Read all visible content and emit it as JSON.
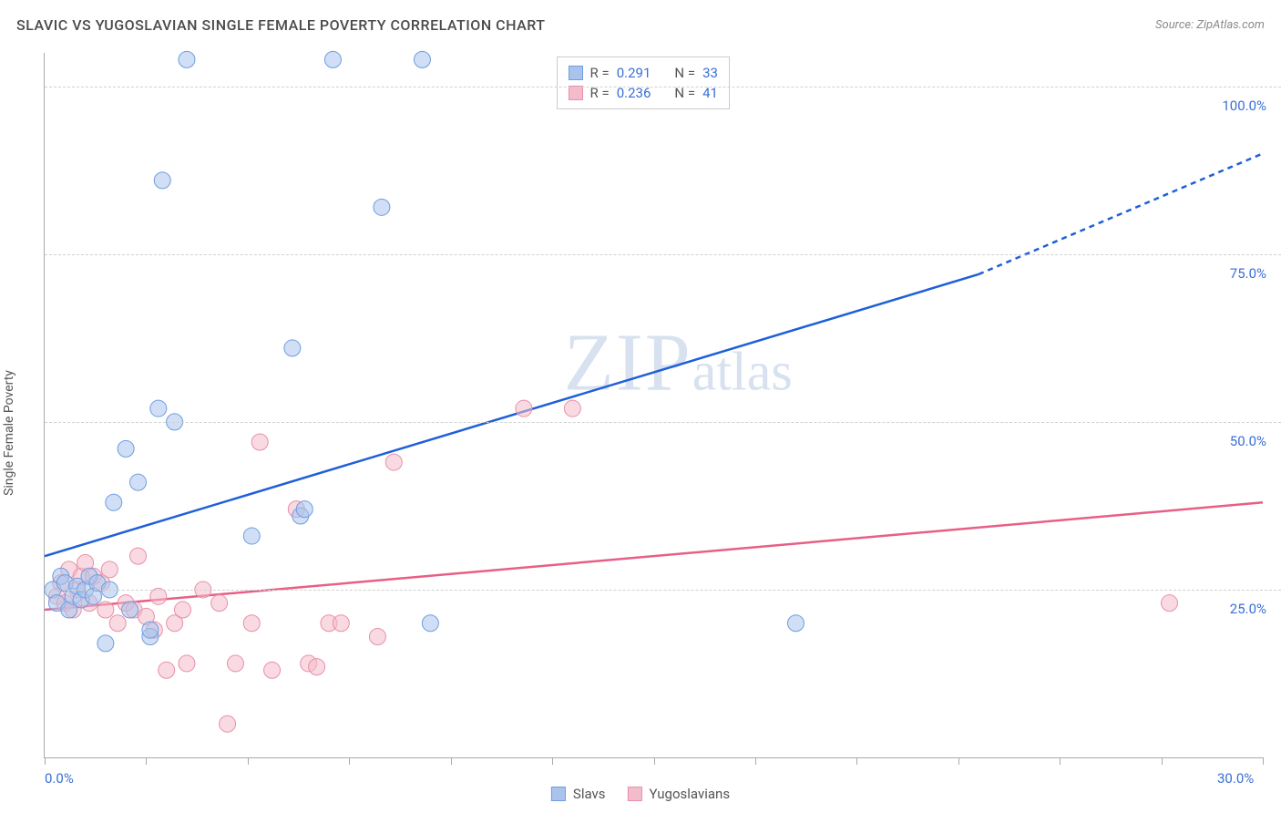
{
  "header": {
    "title": "SLAVIC VS YUGOSLAVIAN SINGLE FEMALE POVERTY CORRELATION CHART",
    "source": "Source: ZipAtlas.com"
  },
  "axes": {
    "y_label": "Single Female Poverty",
    "x_min": 0,
    "x_max": 30,
    "y_min": 0,
    "y_max": 105,
    "y_ticks": [
      25,
      50,
      75,
      100
    ],
    "y_tick_labels": [
      "25.0%",
      "50.0%",
      "75.0%",
      "100.0%"
    ],
    "x_ticks": [
      0,
      2.5,
      5,
      7.5,
      10,
      12.5,
      15,
      17.5,
      20,
      22.5,
      25,
      27.5,
      30
    ],
    "x_labels": [
      {
        "v": 0,
        "t": "0.0%"
      },
      {
        "v": 30,
        "t": "30.0%"
      }
    ],
    "grid_color": "#d0d0d0",
    "axis_color": "#aaaaaa",
    "tick_label_color": "#3b6fd6"
  },
  "colors": {
    "slavs_fill": "#a9c4ec",
    "slavs_stroke": "#6f9de0",
    "yugos_fill": "#f4bccb",
    "yugos_stroke": "#e88fa8",
    "slavs_line": "#1f5fd8",
    "yugos_line": "#e85f86",
    "background": "#ffffff"
  },
  "marker_radius": 9,
  "marker_opacity": 0.55,
  "line_width": 2.5,
  "watermark": {
    "zip": "ZIP",
    "atlas": "atlas"
  },
  "stats_legend": {
    "rows": [
      {
        "sw": "slavs",
        "r_label": "R =",
        "r": "0.291",
        "n_label": "N =",
        "n": "33"
      },
      {
        "sw": "yugos",
        "r_label": "R =",
        "r": "0.236",
        "n_label": "N =",
        "n": "41"
      }
    ]
  },
  "bottom_legend": [
    {
      "sw": "slavs",
      "label": "Slavs"
    },
    {
      "sw": "yugos",
      "label": "Yugoslavians"
    }
  ],
  "series": {
    "slavs": {
      "points": [
        [
          0.2,
          25
        ],
        [
          0.3,
          23
        ],
        [
          0.4,
          27
        ],
        [
          0.5,
          26
        ],
        [
          0.6,
          22
        ],
        [
          0.7,
          24
        ],
        [
          0.8,
          25.5
        ],
        [
          0.9,
          23.5
        ],
        [
          1.0,
          25
        ],
        [
          1.1,
          27
        ],
        [
          1.2,
          24
        ],
        [
          1.3,
          26
        ],
        [
          1.5,
          17
        ],
        [
          1.6,
          25
        ],
        [
          1.7,
          38
        ],
        [
          2.0,
          46
        ],
        [
          2.1,
          22
        ],
        [
          2.3,
          41
        ],
        [
          2.6,
          18
        ],
        [
          2.6,
          19
        ],
        [
          2.8,
          52
        ],
        [
          2.9,
          86
        ],
        [
          3.2,
          50
        ],
        [
          3.5,
          104
        ],
        [
          5.1,
          33
        ],
        [
          6.1,
          61
        ],
        [
          6.3,
          36
        ],
        [
          6.4,
          37
        ],
        [
          7.1,
          104
        ],
        [
          8.3,
          82
        ],
        [
          9.3,
          104
        ],
        [
          9.5,
          20
        ],
        [
          18.5,
          20
        ]
      ],
      "trend": {
        "x1": 0,
        "y1": 30,
        "x2": 23,
        "y2": 72,
        "x2d": 30,
        "y2d": 90
      }
    },
    "yugos": {
      "points": [
        [
          0.3,
          24
        ],
        [
          0.4,
          26
        ],
        [
          0.5,
          23
        ],
        [
          0.6,
          28
        ],
        [
          0.7,
          22
        ],
        [
          0.8,
          25
        ],
        [
          0.9,
          27
        ],
        [
          1.0,
          29
        ],
        [
          1.1,
          23
        ],
        [
          1.2,
          27
        ],
        [
          1.4,
          26
        ],
        [
          1.5,
          22
        ],
        [
          1.6,
          28
        ],
        [
          1.8,
          20
        ],
        [
          2.0,
          23
        ],
        [
          2.2,
          22
        ],
        [
          2.3,
          30
        ],
        [
          2.5,
          21
        ],
        [
          2.7,
          19
        ],
        [
          2.8,
          24
        ],
        [
          3.0,
          13
        ],
        [
          3.2,
          20
        ],
        [
          3.4,
          22
        ],
        [
          3.5,
          14
        ],
        [
          3.9,
          25
        ],
        [
          4.3,
          23
        ],
        [
          4.5,
          5
        ],
        [
          4.7,
          14
        ],
        [
          5.1,
          20
        ],
        [
          5.3,
          47
        ],
        [
          5.6,
          13
        ],
        [
          6.2,
          37
        ],
        [
          6.5,
          14
        ],
        [
          6.7,
          13.5
        ],
        [
          7.0,
          20
        ],
        [
          7.3,
          20
        ],
        [
          8.2,
          18
        ],
        [
          8.6,
          44
        ],
        [
          11.8,
          52
        ],
        [
          13.0,
          52
        ],
        [
          27.7,
          23
        ]
      ],
      "trend": {
        "x1": 0,
        "y1": 22,
        "x2": 30,
        "y2": 38
      }
    }
  }
}
